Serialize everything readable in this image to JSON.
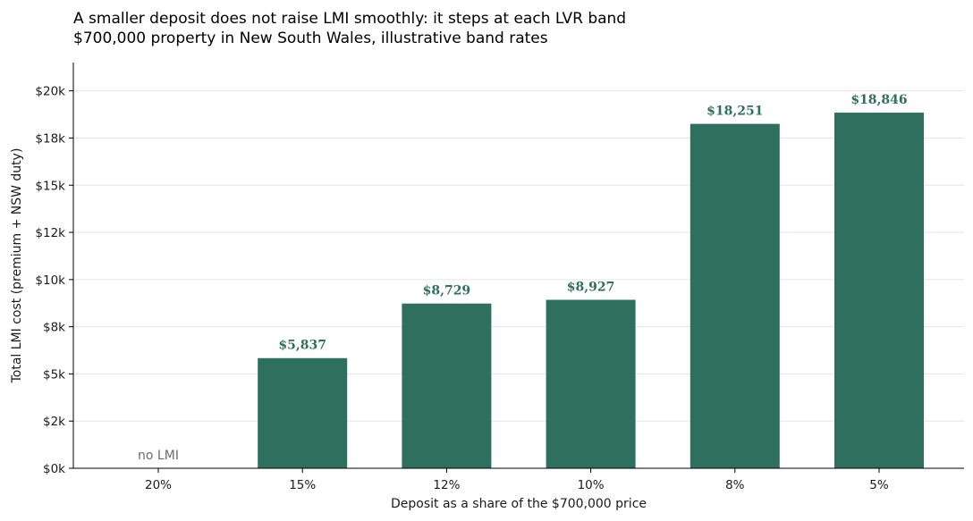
{
  "chart_data": {
    "type": "bar",
    "title": "A smaller deposit does not raise LMI smoothly: it steps at each LVR band",
    "subtitle": "$700,000 property in New South Wales, illustrative band rates",
    "xlabel": "Deposit as a share of the $700,000 price",
    "ylabel": "Total LMI cost (premium + NSW duty)",
    "categories": [
      "20%",
      "15%",
      "12%",
      "10%",
      "8%",
      "5%"
    ],
    "values": [
      0,
      5837,
      8729,
      8927,
      18251,
      18846
    ],
    "value_labels": [
      "",
      "$5,837",
      "$8,729",
      "$8,927",
      "$18,251",
      "$18,846"
    ],
    "annotations": [
      {
        "category": "20%",
        "text": "no LMI"
      }
    ],
    "ylim": [
      0,
      21500
    ],
    "yticks": [
      0,
      2500,
      5000,
      7500,
      10000,
      12500,
      15000,
      17500,
      20000
    ],
    "ytick_labels": [
      "$0k",
      "$2k",
      "$5k",
      "$8k",
      "$10k",
      "$12k",
      "$15k",
      "$18k",
      "$20k"
    ],
    "grid": true,
    "bar_color": "#2e6f5e",
    "label_color": "#2e6f5e",
    "note_color": "#6b6b6b",
    "grid_color": "#e5e5e5"
  }
}
